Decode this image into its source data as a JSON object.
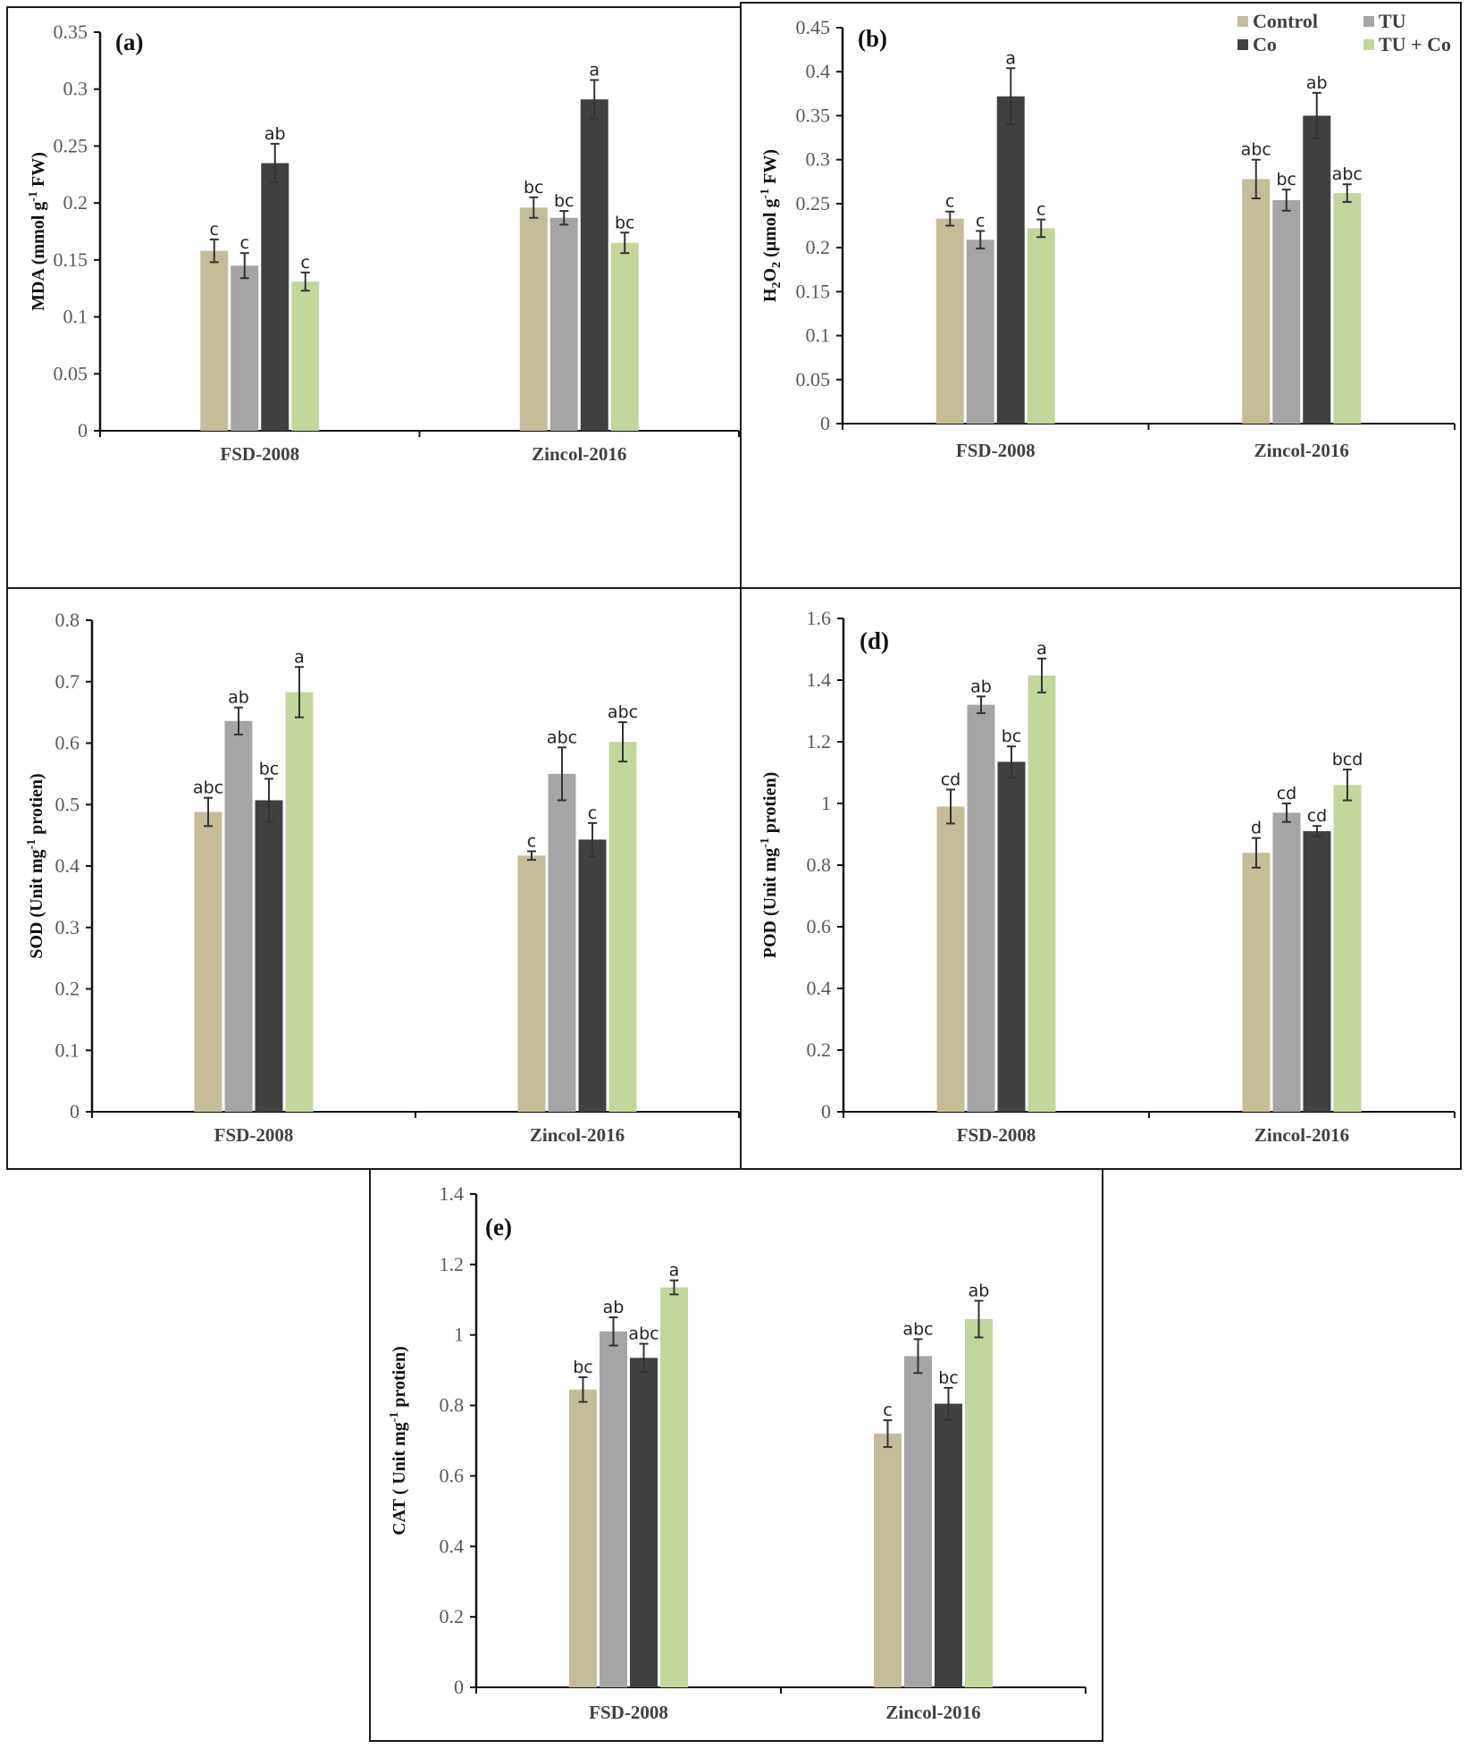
{
  "legend": {
    "entries": [
      {
        "name": "Control",
        "color": "#c4bd97"
      },
      {
        "name": "TU",
        "color": "#a5a5a5"
      },
      {
        "name": "Co",
        "color": "#404040"
      },
      {
        "name": "TU + Co",
        "color": "#c3d69b"
      }
    ]
  },
  "chart_data": [
    {
      "type": "bar",
      "panel": "(a)",
      "title": "",
      "ylabel": "MDA (mmol g-1 FW)",
      "ylabel_parts": {
        "main": "MDA (mmol g",
        "sup": "-1",
        "tail": " FW)"
      },
      "xlabel": "",
      "categories": [
        "FSD-2008",
        "Zincol-2016"
      ],
      "ylim": [
        0,
        0.35
      ],
      "yticks": [
        0,
        0.05,
        0.1,
        0.15,
        0.2,
        0.25,
        0.3,
        0.35
      ],
      "ytick_labels": [
        "0",
        "0.05",
        "0.1",
        "0.15",
        "0.2",
        "0.25",
        "0.3",
        "0.35"
      ],
      "grid": false,
      "series": [
        {
          "name": "Control",
          "values": [
            0.158,
            0.196
          ],
          "errors": [
            0.01,
            0.009
          ],
          "letters": [
            "c",
            "bc"
          ]
        },
        {
          "name": "TU",
          "values": [
            0.145,
            0.187
          ],
          "errors": [
            0.011,
            0.006
          ],
          "letters": [
            "c",
            "bc"
          ]
        },
        {
          "name": "Co",
          "values": [
            0.235,
            0.291
          ],
          "errors": [
            0.017,
            0.017
          ],
          "letters": [
            "ab",
            "a"
          ]
        },
        {
          "name": "TU + Co",
          "values": [
            0.131,
            0.165
          ],
          "errors": [
            0.008,
            0.009
          ],
          "letters": [
            "c",
            "bc"
          ]
        }
      ]
    },
    {
      "type": "bar",
      "panel": "(b)",
      "title": "",
      "ylabel": "H2O2 (µmol g-1 FW)",
      "ylabel_parts": {
        "main": "H",
        "sub1": "2",
        "mid": "O",
        "sub2": "2",
        "rest": " (µmol g",
        "sup": "-1",
        "tail": " FW)"
      },
      "xlabel": "",
      "categories": [
        "FSD-2008",
        "Zincol-2016"
      ],
      "ylim": [
        0,
        0.45
      ],
      "yticks": [
        0,
        0.05,
        0.1,
        0.15,
        0.2,
        0.25,
        0.3,
        0.35,
        0.4,
        0.45
      ],
      "ytick_labels": [
        "0",
        "0.05",
        "0.1",
        "0.15",
        "0.2",
        "0.25",
        "0.3",
        "0.35",
        "0.4",
        "0.45"
      ],
      "grid": false,
      "legend_position": "top-right",
      "series": [
        {
          "name": "Control",
          "values": [
            0.233,
            0.278
          ],
          "errors": [
            0.008,
            0.022
          ],
          "letters": [
            "c",
            "abc"
          ]
        },
        {
          "name": "TU",
          "values": [
            0.209,
            0.254
          ],
          "errors": [
            0.01,
            0.012
          ],
          "letters": [
            "c",
            "bc"
          ]
        },
        {
          "name": "Co",
          "values": [
            0.372,
            0.35
          ],
          "errors": [
            0.032,
            0.026
          ],
          "letters": [
            "a",
            "ab"
          ]
        },
        {
          "name": "TU + Co",
          "values": [
            0.222,
            0.262
          ],
          "errors": [
            0.01,
            0.01
          ],
          "letters": [
            "c",
            "abc"
          ]
        }
      ]
    },
    {
      "type": "bar",
      "panel": "",
      "title": "",
      "ylabel": "SOD (Unit mg-1 protien)",
      "ylabel_parts": {
        "main": "SOD (Unit  mg",
        "sup": "-1",
        "tail": " protien)"
      },
      "xlabel": "",
      "categories": [
        "FSD-2008",
        "Zincol-2016"
      ],
      "ylim": [
        0,
        0.8
      ],
      "yticks": [
        0,
        0.1,
        0.2,
        0.3,
        0.4,
        0.5,
        0.6,
        0.7,
        0.8
      ],
      "ytick_labels": [
        "0",
        "0.1",
        "0.2",
        "0.3",
        "0.4",
        "0.5",
        "0.6",
        "0.7",
        "0.8"
      ],
      "grid": false,
      "series": [
        {
          "name": "Control",
          "values": [
            0.488,
            0.417
          ],
          "errors": [
            0.023,
            0.007
          ],
          "letters": [
            "abc",
            "c"
          ]
        },
        {
          "name": "TU",
          "values": [
            0.636,
            0.55
          ],
          "errors": [
            0.022,
            0.043
          ],
          "letters": [
            "ab",
            "abc"
          ]
        },
        {
          "name": "Co",
          "values": [
            0.507,
            0.443
          ],
          "errors": [
            0.035,
            0.027
          ],
          "letters": [
            "bc",
            "c"
          ]
        },
        {
          "name": "TU + Co",
          "values": [
            0.683,
            0.602
          ],
          "errors": [
            0.041,
            0.032
          ],
          "letters": [
            "a",
            "abc"
          ]
        }
      ]
    },
    {
      "type": "bar",
      "panel": "(d)",
      "title": "",
      "ylabel": "POD (Unit mg-1 protien)",
      "ylabel_parts": {
        "main": "POD (Unit  mg",
        "sup": "-1",
        "tail": " protien)"
      },
      "xlabel": "",
      "categories": [
        "FSD-2008",
        "Zincol-2016"
      ],
      "ylim": [
        0,
        1.6
      ],
      "yticks": [
        0,
        0.2,
        0.4,
        0.6,
        0.8,
        1,
        1.2,
        1.4,
        1.6
      ],
      "ytick_labels": [
        "0",
        "0.2",
        "0.4",
        "0.6",
        "0.8",
        "1",
        "1.2",
        "1.4",
        "1.6"
      ],
      "grid": false,
      "series": [
        {
          "name": "Control",
          "values": [
            0.99,
            0.84
          ],
          "errors": [
            0.055,
            0.048
          ],
          "letters": [
            "cd",
            "d"
          ]
        },
        {
          "name": "TU",
          "values": [
            1.32,
            0.97
          ],
          "errors": [
            0.027,
            0.03
          ],
          "letters": [
            "ab",
            "cd"
          ]
        },
        {
          "name": "Co",
          "values": [
            1.135,
            0.91
          ],
          "errors": [
            0.05,
            0.017
          ],
          "letters": [
            "bc",
            "cd"
          ]
        },
        {
          "name": "TU + Co",
          "values": [
            1.415,
            1.06
          ],
          "errors": [
            0.055,
            0.05
          ],
          "letters": [
            "a",
            "bcd"
          ]
        }
      ]
    },
    {
      "type": "bar",
      "panel": "(e)",
      "title": "",
      "ylabel": "CAT ( Unit mg-1 protien)",
      "ylabel_parts": {
        "main": "CAT ( Unit  mg",
        "sup": "-1",
        "tail": " protien)"
      },
      "xlabel": "",
      "categories": [
        "FSD-2008",
        "Zincol-2016"
      ],
      "ylim": [
        0,
        1.4
      ],
      "yticks": [
        0,
        0.2,
        0.4,
        0.6,
        0.8,
        1,
        1.2,
        1.4
      ],
      "ytick_labels": [
        "0",
        "0.2",
        "0.4",
        "0.6",
        "0.8",
        "1",
        "1.2",
        "1.4"
      ],
      "grid": false,
      "series": [
        {
          "name": "Control",
          "values": [
            0.845,
            0.72
          ],
          "errors": [
            0.035,
            0.038
          ],
          "letters": [
            "bc",
            "c"
          ]
        },
        {
          "name": "TU",
          "values": [
            1.01,
            0.94
          ],
          "errors": [
            0.04,
            0.048
          ],
          "letters": [
            "ab",
            "abc"
          ]
        },
        {
          "name": "Co",
          "values": [
            0.935,
            0.805
          ],
          "errors": [
            0.04,
            0.045
          ],
          "letters": [
            "abc",
            "bc"
          ]
        },
        {
          "name": "TU + Co",
          "values": [
            1.135,
            1.045
          ],
          "errors": [
            0.02,
            0.052
          ],
          "letters": [
            "a",
            "ab"
          ]
        }
      ]
    }
  ]
}
